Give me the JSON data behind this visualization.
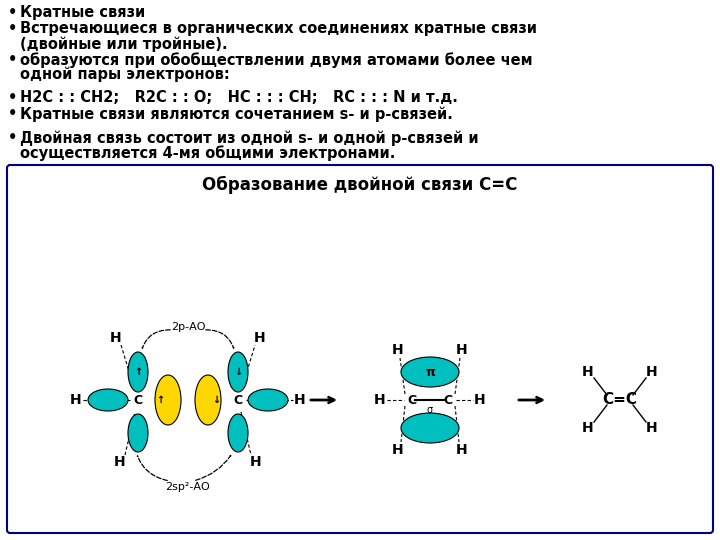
{
  "bg_color": "#ffffff",
  "box_bg": "#ffffff",
  "box_border": "#00008B",
  "cyan_color": "#00BFBF",
  "yellow_color": "#FFD700",
  "text_color": "#000000",
  "title_box": "Образование двойной связи C=C",
  "bullet1": "Кратные связи",
  "bullet2a": "Встречающиеся в органических соединениях кратные связи",
  "bullet2b": "(двойные или тройные).",
  "bullet3a": "образуются при обобществлении двумя атомами более чем",
  "bullet3b": "одной пары электронов:",
  "bullet4": "H2C : : CH2;   R2C : : O;   HC : : : CH;   RC : : : N и т.д.",
  "bullet5": "Кратные связи являются сочетанием s- и p-связей.",
  "bullet6a": "Двойная связь состоит из одной s- и одной p-связей и",
  "bullet6b": "осуществляется 4-мя общими электронами.",
  "label_2pAO": "2p-АО",
  "label_2sp2AO": "2sp²-АО"
}
